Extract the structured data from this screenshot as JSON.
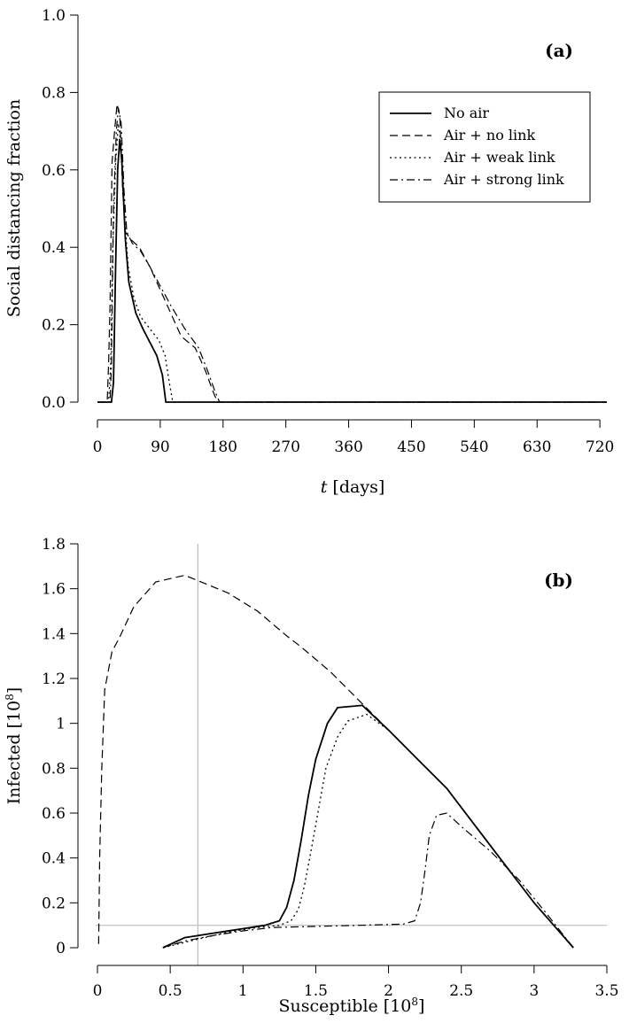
{
  "chart_data": [
    {
      "type": "line",
      "panel_tag": "(a)",
      "xlabel_italic": "t",
      "xlabel_rest": " [days]",
      "ylabel": "Social distancing fraction",
      "xlim": [
        0,
        730
      ],
      "ylim": [
        0,
        1.0
      ],
      "xticks": [
        0,
        90,
        180,
        270,
        360,
        450,
        540,
        630,
        720
      ],
      "xtick_labels": [
        "0",
        "90",
        "180",
        "270",
        "360",
        "450",
        "540",
        "630",
        "720"
      ],
      "yticks": [
        0,
        0.2,
        0.4,
        0.6,
        0.8,
        1.0
      ],
      "ytick_labels": [
        "0.0",
        "0.2",
        "0.4",
        "0.6",
        "0.8",
        "1.0"
      ],
      "legend_position": "top-right",
      "series": [
        {
          "name": "No air",
          "style": "solid",
          "points": [
            [
              0,
              0
            ],
            [
              20,
              0
            ],
            [
              23,
              0.05
            ],
            [
              26,
              0.35
            ],
            [
              29,
              0.6
            ],
            [
              32,
              0.68
            ],
            [
              35,
              0.62
            ],
            [
              40,
              0.42
            ],
            [
              45,
              0.31
            ],
            [
              55,
              0.23
            ],
            [
              65,
              0.19
            ],
            [
              75,
              0.155
            ],
            [
              85,
              0.12
            ],
            [
              93,
              0.07
            ],
            [
              98,
              0
            ],
            [
              730,
              0
            ]
          ]
        },
        {
          "name": "Air + no link",
          "style": "dashed",
          "points": [
            [
              0,
              0
            ],
            [
              14,
              0
            ],
            [
              16,
              0.1
            ],
            [
              18,
              0.25
            ],
            [
              21,
              0.62
            ],
            [
              25,
              0.71
            ],
            [
              28,
              0.77
            ],
            [
              32,
              0.74
            ],
            [
              36,
              0.55
            ],
            [
              40,
              0.44
            ],
            [
              48,
              0.42
            ],
            [
              60,
              0.4
            ],
            [
              75,
              0.35
            ],
            [
              90,
              0.29
            ],
            [
              105,
              0.23
            ],
            [
              120,
              0.17
            ],
            [
              140,
              0.14
            ],
            [
              155,
              0.08
            ],
            [
              165,
              0.03
            ],
            [
              172,
              0
            ],
            [
              730,
              0
            ]
          ]
        },
        {
          "name": "Air + weak link",
          "style": "dotted",
          "points": [
            [
              0,
              0
            ],
            [
              16,
              0
            ],
            [
              19,
              0.1
            ],
            [
              22,
              0.4
            ],
            [
              26,
              0.62
            ],
            [
              30,
              0.72
            ],
            [
              34,
              0.66
            ],
            [
              38,
              0.5
            ],
            [
              44,
              0.35
            ],
            [
              52,
              0.27
            ],
            [
              62,
              0.22
            ],
            [
              75,
              0.19
            ],
            [
              88,
              0.16
            ],
            [
              97,
              0.12
            ],
            [
              103,
              0.05
            ],
            [
              108,
              0
            ],
            [
              730,
              0
            ]
          ]
        },
        {
          "name": "Air + strong link",
          "style": "dashdot",
          "points": [
            [
              0,
              0
            ],
            [
              18,
              0
            ],
            [
              20,
              0.1
            ],
            [
              23,
              0.5
            ],
            [
              27,
              0.7
            ],
            [
              30,
              0.76
            ],
            [
              34,
              0.72
            ],
            [
              38,
              0.55
            ],
            [
              42,
              0.44
            ],
            [
              50,
              0.41
            ],
            [
              62,
              0.39
            ],
            [
              75,
              0.35
            ],
            [
              90,
              0.3
            ],
            [
              105,
              0.25
            ],
            [
              125,
              0.19
            ],
            [
              145,
              0.14
            ],
            [
              158,
              0.08
            ],
            [
              168,
              0.03
            ],
            [
              175,
              0
            ],
            [
              730,
              0
            ]
          ]
        }
      ]
    },
    {
      "type": "line",
      "panel_tag": "(b)",
      "xlabel": "Susceptible [10",
      "xlabel_exp": "8",
      "xlabel_close": "]",
      "ylabel": "Infected [10",
      "ylabel_exp": "8",
      "ylabel_close": "]",
      "xlim": [
        0,
        3.5
      ],
      "ylim": [
        0,
        1.8
      ],
      "xticks": [
        0,
        0.5,
        1,
        1.5,
        2,
        2.5,
        3,
        3.5
      ],
      "xtick_labels": [
        "0",
        "0.5",
        "1",
        "1.5",
        "2",
        "2.5",
        "3",
        "3.5"
      ],
      "yticks": [
        0,
        0.2,
        0.4,
        0.6,
        0.8,
        1.0,
        1.2,
        1.4,
        1.6,
        1.8
      ],
      "ytick_labels": [
        "0",
        "0.2",
        "0.4",
        "0.6",
        "0.8",
        "1",
        "1.2",
        "1.4",
        "1.6",
        "1.8"
      ],
      "reference_lines": {
        "vertical_x": 0.69,
        "horizontal_y": 0.1
      },
      "series": [
        {
          "name": "No air",
          "style": "solid",
          "points": [
            [
              3.27,
              0
            ],
            [
              3.0,
              0.2
            ],
            [
              2.8,
              0.37
            ],
            [
              2.6,
              0.54
            ],
            [
              2.4,
              0.71
            ],
            [
              2.2,
              0.84
            ],
            [
              2.0,
              0.97
            ],
            [
              1.82,
              1.08
            ],
            [
              1.65,
              1.07
            ],
            [
              1.58,
              1.0
            ],
            [
              1.5,
              0.84
            ],
            [
              1.45,
              0.68
            ],
            [
              1.4,
              0.48
            ],
            [
              1.35,
              0.3
            ],
            [
              1.3,
              0.18
            ],
            [
              1.25,
              0.12
            ],
            [
              1.15,
              0.1
            ],
            [
              1.0,
              0.085
            ],
            [
              0.8,
              0.065
            ],
            [
              0.6,
              0.045
            ],
            [
              0.45,
              0
            ]
          ]
        },
        {
          "name": "Air + no link",
          "style": "dashed",
          "points": [
            [
              3.27,
              0
            ],
            [
              3.0,
              0.2
            ],
            [
              2.8,
              0.37
            ],
            [
              2.6,
              0.54
            ],
            [
              2.4,
              0.71
            ],
            [
              2.2,
              0.84
            ],
            [
              2.0,
              0.97
            ],
            [
              1.8,
              1.1
            ],
            [
              1.6,
              1.23
            ],
            [
              1.4,
              1.34
            ],
            [
              1.3,
              1.39
            ],
            [
              1.1,
              1.5
            ],
            [
              0.9,
              1.58
            ],
            [
              0.75,
              1.62
            ],
            [
              0.6,
              1.66
            ],
            [
              0.4,
              1.63
            ],
            [
              0.25,
              1.52
            ],
            [
              0.15,
              1.38
            ],
            [
              0.1,
              1.32
            ],
            [
              0.05,
              1.15
            ],
            [
              0.03,
              0.8
            ],
            [
              0.015,
              0.4
            ],
            [
              0.008,
              0
            ]
          ]
        },
        {
          "name": "Air + weak link",
          "style": "dotted",
          "points": [
            [
              3.27,
              0
            ],
            [
              3.0,
              0.2
            ],
            [
              2.8,
              0.37
            ],
            [
              2.6,
              0.54
            ],
            [
              2.4,
              0.71
            ],
            [
              2.2,
              0.84
            ],
            [
              2.0,
              0.97
            ],
            [
              1.85,
              1.04
            ],
            [
              1.72,
              1.01
            ],
            [
              1.65,
              0.94
            ],
            [
              1.57,
              0.8
            ],
            [
              1.52,
              0.62
            ],
            [
              1.47,
              0.44
            ],
            [
              1.42,
              0.27
            ],
            [
              1.38,
              0.17
            ],
            [
              1.33,
              0.12
            ],
            [
              1.25,
              0.1
            ],
            [
              1.1,
              0.09
            ],
            [
              0.9,
              0.07
            ],
            [
              0.7,
              0.04
            ],
            [
              0.45,
              0
            ]
          ]
        },
        {
          "name": "Air + strong link",
          "style": "dashdot",
          "points": [
            [
              3.27,
              0
            ],
            [
              3.1,
              0.14
            ],
            [
              2.9,
              0.3
            ],
            [
              2.7,
              0.43
            ],
            [
              2.5,
              0.54
            ],
            [
              2.4,
              0.6
            ],
            [
              2.33,
              0.59
            ],
            [
              2.28,
              0.5
            ],
            [
              2.25,
              0.34
            ],
            [
              2.22,
              0.2
            ],
            [
              2.18,
              0.12
            ],
            [
              2.1,
              0.105
            ],
            [
              1.8,
              0.1
            ],
            [
              1.5,
              0.095
            ],
            [
              1.2,
              0.09
            ],
            [
              1.0,
              0.075
            ],
            [
              0.8,
              0.055
            ],
            [
              0.6,
              0.03
            ],
            [
              0.45,
              0
            ]
          ]
        }
      ]
    }
  ]
}
